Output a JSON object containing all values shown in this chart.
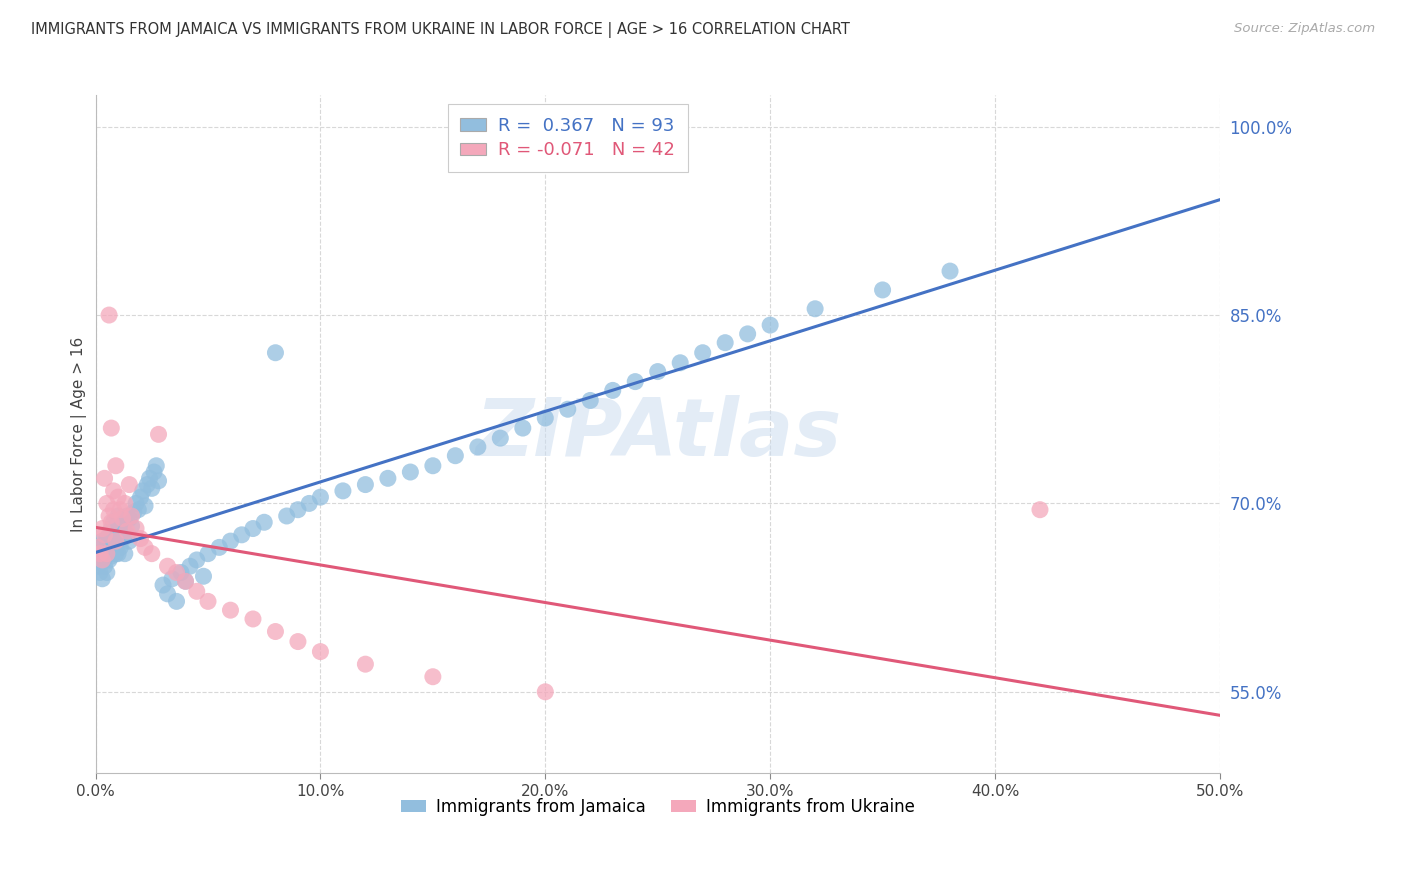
{
  "title": "IMMIGRANTS FROM JAMAICA VS IMMIGRANTS FROM UKRAINE IN LABOR FORCE | AGE > 16 CORRELATION CHART",
  "source": "Source: ZipAtlas.com",
  "ylabel": "In Labor Force | Age > 16",
  "xlim": [
    0.0,
    0.5
  ],
  "ylim": [
    0.485,
    1.025
  ],
  "xtick_vals": [
    0.0,
    0.1,
    0.2,
    0.3,
    0.4,
    0.5
  ],
  "xtick_labels": [
    "0.0%",
    "10.0%",
    "20.0%",
    "30.0%",
    "40.0%",
    "50.0%"
  ],
  "ytick_vals": [
    0.55,
    0.7,
    0.85,
    1.0
  ],
  "ytick_labels": [
    "55.0%",
    "70.0%",
    "85.0%",
    "100.0%"
  ],
  "jamaica_color": "#92bede",
  "ukraine_color": "#f4a8bb",
  "jamaica_line_color": "#4472c4",
  "ukraine_line_color": "#e05878",
  "jamaica_R": 0.367,
  "jamaica_N": 93,
  "ukraine_R": -0.071,
  "ukraine_N": 42,
  "legend_jamaica_label": "Immigrants from Jamaica",
  "legend_ukraine_label": "Immigrants from Ukraine",
  "watermark": "ZIPAtlas",
  "background_color": "#ffffff",
  "grid_color": "#d8d8d8",
  "jamaica_scatter_x": [
    0.001,
    0.002,
    0.002,
    0.003,
    0.003,
    0.003,
    0.004,
    0.004,
    0.004,
    0.005,
    0.005,
    0.005,
    0.005,
    0.006,
    0.006,
    0.006,
    0.007,
    0.007,
    0.007,
    0.008,
    0.008,
    0.008,
    0.009,
    0.009,
    0.01,
    0.01,
    0.01,
    0.011,
    0.011,
    0.012,
    0.012,
    0.013,
    0.013,
    0.014,
    0.014,
    0.015,
    0.015,
    0.016,
    0.017,
    0.018,
    0.019,
    0.02,
    0.021,
    0.022,
    0.023,
    0.024,
    0.025,
    0.026,
    0.027,
    0.028,
    0.03,
    0.032,
    0.034,
    0.036,
    0.038,
    0.04,
    0.042,
    0.045,
    0.048,
    0.05,
    0.055,
    0.06,
    0.065,
    0.07,
    0.075,
    0.08,
    0.085,
    0.09,
    0.095,
    0.1,
    0.11,
    0.12,
    0.13,
    0.14,
    0.15,
    0.16,
    0.17,
    0.18,
    0.19,
    0.2,
    0.21,
    0.22,
    0.23,
    0.24,
    0.25,
    0.26,
    0.27,
    0.28,
    0.29,
    0.3,
    0.32,
    0.35,
    0.38
  ],
  "jamaica_scatter_y": [
    0.65,
    0.66,
    0.645,
    0.655,
    0.67,
    0.64,
    0.662,
    0.65,
    0.668,
    0.658,
    0.672,
    0.645,
    0.665,
    0.66,
    0.655,
    0.675,
    0.67,
    0.658,
    0.68,
    0.665,
    0.672,
    0.685,
    0.66,
    0.68,
    0.67,
    0.66,
    0.69,
    0.675,
    0.665,
    0.68,
    0.672,
    0.685,
    0.66,
    0.69,
    0.675,
    0.688,
    0.67,
    0.682,
    0.693,
    0.7,
    0.695,
    0.705,
    0.71,
    0.698,
    0.715,
    0.72,
    0.712,
    0.725,
    0.73,
    0.718,
    0.635,
    0.628,
    0.64,
    0.622,
    0.645,
    0.638,
    0.65,
    0.655,
    0.642,
    0.66,
    0.665,
    0.67,
    0.675,
    0.68,
    0.685,
    0.82,
    0.69,
    0.695,
    0.7,
    0.705,
    0.71,
    0.715,
    0.72,
    0.725,
    0.73,
    0.738,
    0.745,
    0.752,
    0.76,
    0.768,
    0.775,
    0.782,
    0.79,
    0.797,
    0.805,
    0.812,
    0.82,
    0.828,
    0.835,
    0.842,
    0.855,
    0.87,
    0.885
  ],
  "ukraine_scatter_x": [
    0.001,
    0.002,
    0.003,
    0.003,
    0.004,
    0.004,
    0.005,
    0.005,
    0.006,
    0.006,
    0.007,
    0.007,
    0.008,
    0.008,
    0.009,
    0.009,
    0.01,
    0.011,
    0.012,
    0.013,
    0.014,
    0.015,
    0.016,
    0.018,
    0.02,
    0.022,
    0.025,
    0.028,
    0.032,
    0.036,
    0.04,
    0.045,
    0.05,
    0.06,
    0.07,
    0.08,
    0.09,
    0.1,
    0.12,
    0.15,
    0.2,
    0.42
  ],
  "ukraine_scatter_y": [
    0.665,
    0.66,
    0.68,
    0.655,
    0.72,
    0.675,
    0.7,
    0.66,
    0.85,
    0.69,
    0.76,
    0.685,
    0.695,
    0.71,
    0.73,
    0.67,
    0.705,
    0.695,
    0.688,
    0.7,
    0.678,
    0.715,
    0.69,
    0.68,
    0.672,
    0.665,
    0.66,
    0.755,
    0.65,
    0.645,
    0.638,
    0.63,
    0.622,
    0.615,
    0.608,
    0.598,
    0.59,
    0.582,
    0.572,
    0.562,
    0.55,
    0.695
  ]
}
